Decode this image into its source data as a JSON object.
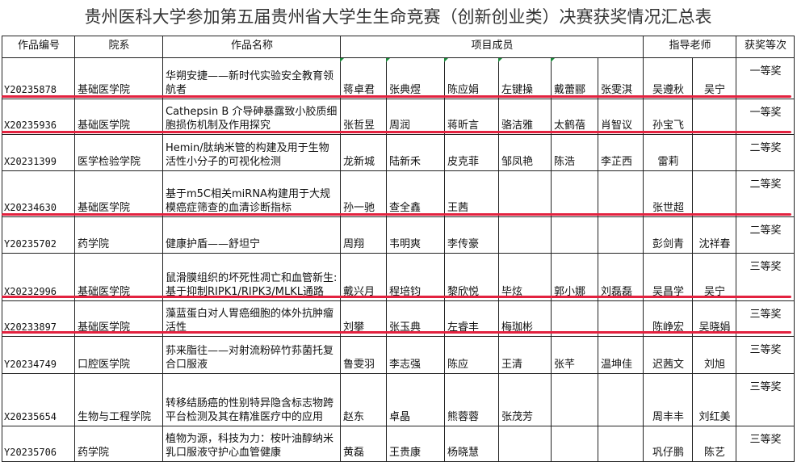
{
  "title": "贵州医科大学参加第五届贵州省大学生生命竞赛（创新创业类）决赛获奖情况汇总表",
  "headers": {
    "code": "作品编号",
    "college": "院系",
    "name": "作品名称",
    "members": "项目成员",
    "advisors": "指导老师",
    "award": "获奖等次"
  },
  "highlight_color": "#e3223f",
  "rows": [
    {
      "code": "Y20235878",
      "college": "基础医学院",
      "name": "华朔安捷——新时代实验安全教育领航者",
      "members": [
        "蒋卓君",
        "张典煜",
        "陈应娟",
        "左键操",
        "戴蕾郦",
        "张雯淇"
      ],
      "advisors": [
        "吴遵秋",
        "吴宁"
      ],
      "award": "一等奖"
    },
    {
      "code": "X20235936",
      "college": "基础医学院",
      "name": "Cathepsin B 介导砷暴露致小胶质细胞损伤机制及作用探究",
      "members": [
        "张哲昱",
        "周润",
        "蒋昕言",
        "骆洁雅",
        "太鹤蓓",
        "肖智议"
      ],
      "advisors": [
        "孙宝飞",
        ""
      ],
      "award": "一等奖"
    },
    {
      "code": "X20231399",
      "college": "医学检验学院",
      "name": "Hemin/肽纳米管的构建及用于生物活性小分子的可视化检测",
      "members": [
        "龙新城",
        "陆新禾",
        "皮克菲",
        "邹凤艳",
        "陈浩",
        "李芷西"
      ],
      "advisors": [
        "雷莉",
        ""
      ],
      "award": "二等奖"
    },
    {
      "code": "X20234630",
      "college": "基础医学院",
      "name": "基于m5C相关miRNA构建用于大规模癌症筛查的血清诊断指标",
      "members": [
        "孙一驰",
        "查全鑫",
        "王茜",
        "",
        "",
        ""
      ],
      "advisors": [
        "张世超",
        ""
      ],
      "award": "二等奖"
    },
    {
      "code": "Y20235702",
      "college": "药学院",
      "name": "健康护盾——舒坦宁",
      "members": [
        "周翔",
        "韦明爽",
        "李传豪",
        "",
        "",
        ""
      ],
      "advisors": [
        "彭剑青",
        "沈祥春"
      ],
      "award": "二等奖"
    },
    {
      "code": "X20232996",
      "college": "基础医学院",
      "name": "鼠滑膜组织的坏死性凋亡和血管新生:基于抑制RIPK1/RIPK3/MLKL通路",
      "members": [
        "戴兴月",
        "程培钧",
        "黎欣悦",
        "毕炫",
        "郭小娜",
        "刘磊磊"
      ],
      "advisors": [
        "吴昌学",
        "吴宁"
      ],
      "award": "三等奖"
    },
    {
      "code": "X20233897",
      "college": "基础医学院",
      "name": "藻蓝蛋白对人胃癌细胞的体外抗肿瘤活性",
      "members": [
        "刘攀",
        "张玉典",
        "左睿丰",
        "梅珈彬",
        "",
        ""
      ],
      "advisors": [
        "陈峥宏",
        "吴晓娟"
      ],
      "award": "三等奖"
    },
    {
      "code": "Y20234749",
      "college": "口腔医学院",
      "name": "荪来脂往——对射流粉碎竹荪菌托复合口服液",
      "members": [
        "鲁雯羽",
        "李志强",
        "陈应",
        "王清",
        "张芊",
        "温坤佳"
      ],
      "advisors": [
        "迟茜文",
        "刘旭"
      ],
      "award": "三等奖"
    },
    {
      "code": "X20235654",
      "college": "生物与工程学院",
      "name": "转移结肠癌的性别特异隐含标志物跨平台检测及其在精准医疗中的应用",
      "members": [
        "赵东",
        "卓晶",
        "熊蓉蓉",
        "张茂芳",
        "",
        ""
      ],
      "advisors": [
        "周丰丰",
        "刘红美"
      ],
      "award": "三等奖"
    },
    {
      "code": "Y20235706",
      "college": "药学院",
      "name": "植物为源，科技为力：桉叶油醇纳米乳口服液守护心血管健康",
      "members": [
        "黄磊",
        "王贵康",
        "杨晓慧",
        "",
        "",
        ""
      ],
      "advisors": [
        "巩仔鹏",
        "陈艺"
      ],
      "award": "三等奖"
    }
  ]
}
